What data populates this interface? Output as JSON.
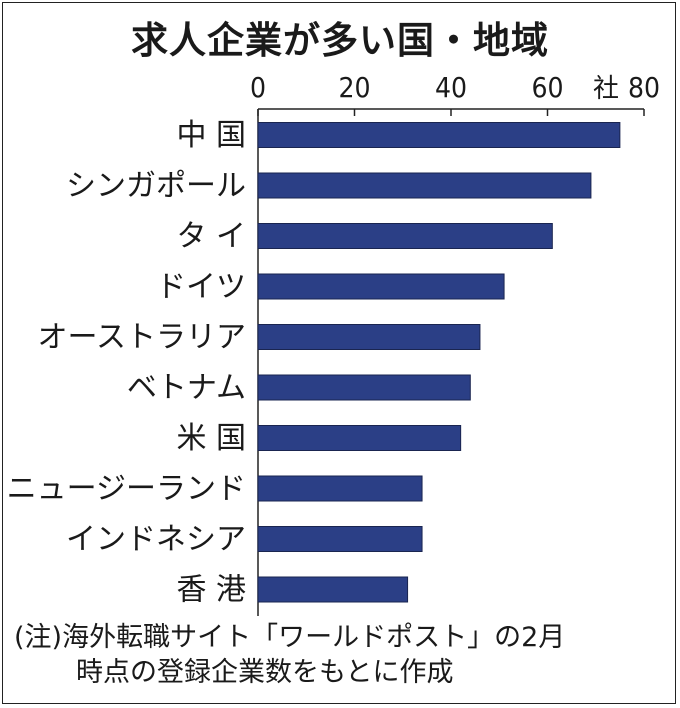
{
  "chart_data": {
    "type": "bar",
    "orientation": "horizontal",
    "title": "求人企業が多い国・地域",
    "unit": "社",
    "xlim": [
      0,
      80
    ],
    "ticks": [
      0,
      20,
      40,
      60,
      80
    ],
    "categories": [
      "中 国",
      "シンガポール",
      "タ イ",
      "ドイツ",
      "オーストラリア",
      "ベトナム",
      "米 国",
      "ニュージーランド",
      "インドネシア",
      "香 港"
    ],
    "values": [
      75,
      69,
      61,
      51,
      46,
      44,
      42,
      34,
      34,
      31
    ],
    "bar_color": "#2b3f86",
    "grid": false
  },
  "note": {
    "line1": "(注)海外転職サイト「ワールドポスト」の2月",
    "line2": "時点の登録企業数をもとに作成"
  }
}
